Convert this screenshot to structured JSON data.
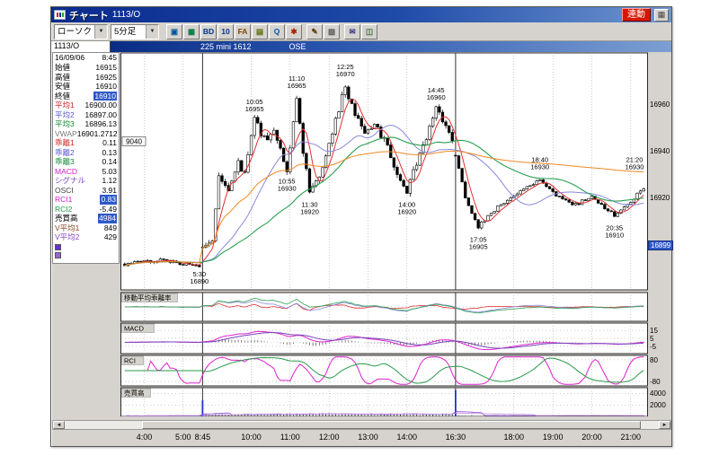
{
  "window": {
    "title": "チャート",
    "title_code": "1113/O",
    "linked_button": "連動",
    "corner_icon_glyph": "▦"
  },
  "toolbar": {
    "chart_type_value": "ローソク",
    "timeframe_value": "5分足",
    "dropdown_arrow": "▼",
    "icon_groups": [
      [
        {
          "name": "frame-icon",
          "glyph": "▣",
          "color": "#005599"
        },
        {
          "name": "multi-chart-icon",
          "glyph": "▦",
          "color": "#007744"
        },
        {
          "name": "board-icon",
          "glyph": "BD",
          "color": "#003399"
        },
        {
          "name": "tick-list-icon",
          "glyph": "10",
          "color": "#003399"
        },
        {
          "name": "news-icon",
          "glyph": "FA",
          "color": "#884400"
        },
        {
          "name": "grid-icon",
          "glyph": "▤",
          "color": "#556600"
        },
        {
          "name": "search-icon",
          "glyph": "Q",
          "color": "#0055aa"
        },
        {
          "name": "indicator-icon",
          "glyph": "✱",
          "color": "#aa2200"
        }
      ],
      [
        {
          "name": "draw-line-icon",
          "glyph": "✎",
          "color": "#553300"
        },
        {
          "name": "erase-icon",
          "glyph": "▨",
          "color": "#555555"
        }
      ],
      [
        {
          "name": "mail-icon",
          "glyph": "✉",
          "color": "#333388"
        },
        {
          "name": "capture-icon",
          "glyph": "◫",
          "color": "#336633"
        }
      ]
    ]
  },
  "infobar": {
    "code": "1113/O",
    "instrument": "225 mini 1612",
    "exchange": "OSE"
  },
  "data_panel": {
    "date": "16/09/06",
    "time": "8:45",
    "rows": [
      {
        "label": "始値",
        "value": "16915",
        "color": "#000000",
        "highlight": false
      },
      {
        "label": "高値",
        "value": "16925",
        "color": "#000000",
        "highlight": false
      },
      {
        "label": "安値",
        "value": "16910",
        "color": "#000000",
        "highlight": false
      },
      {
        "label": "終値",
        "value": "16910",
        "color": "#000000",
        "highlight": true
      },
      {
        "label": "平均1",
        "value": "16900.00",
        "color": "#cc2222",
        "highlight": false
      },
      {
        "label": "平均2",
        "value": "16897.00",
        "color": "#5555cc",
        "highlight": false
      },
      {
        "label": "平均3",
        "value": "16896.13",
        "color": "#118833",
        "highlight": false
      },
      {
        "label": "VWAP",
        "value": "16901.2712",
        "color": "#777777",
        "highlight": false
      },
      {
        "label": "乖離1",
        "value": "0.11",
        "color": "#cc2222",
        "highlight": false
      },
      {
        "label": "乖離2",
        "value": "0.13",
        "color": "#5555cc",
        "highlight": false
      },
      {
        "label": "乖離3",
        "value": "0.14",
        "color": "#118833",
        "highlight": false
      },
      {
        "label": "MACD",
        "value": "5.03",
        "color": "#cc22cc",
        "highlight": false
      },
      {
        "label": "シグナル",
        "value": "1.12",
        "color": "#7744bb",
        "highlight": false
      },
      {
        "label": "OSCI",
        "value": "3.91",
        "color": "#444444",
        "highlight": false
      },
      {
        "label": "RCI1",
        "value": "0.83",
        "color": "#cc22cc",
        "highlight": true
      },
      {
        "label": "RCI2",
        "value": "-5.49",
        "color": "#22984a",
        "highlight": false
      },
      {
        "label": "売買高",
        "value": "4984",
        "color": "#000000",
        "highlight": true
      },
      {
        "label": "V平均1",
        "value": "849",
        "color": "#884422",
        "highlight": false
      },
      {
        "label": "V平均2",
        "value": "429",
        "color": "#8844cc",
        "highlight": false
      }
    ],
    "legend_chips": [
      "#6633cc",
      "#9966cc"
    ]
  },
  "scrollbar": {
    "left_arrow": "◄",
    "right_arrow": "►"
  },
  "chart_data": {
    "type": "candlestick",
    "timeframe": "5分足",
    "instrument": "225 mini 1612",
    "exchange": "OSE",
    "sessions": [
      {
        "start": "3:30",
        "end": "5:25"
      },
      {
        "start": "8:45",
        "end": "15:10"
      },
      {
        "start": "16:30",
        "end": "21:20"
      }
    ],
    "price_anchors": [
      [
        "3:30",
        16891
      ],
      [
        "4:30",
        16893
      ],
      [
        "5:25",
        16890
      ],
      [
        "8:45",
        16898
      ],
      [
        "9:00",
        16902
      ],
      [
        "9:10",
        16928
      ],
      [
        "9:25",
        16922
      ],
      [
        "9:40",
        16935
      ],
      [
        "9:50",
        16930
      ],
      [
        "10:05",
        16953
      ],
      [
        "10:20",
        16945
      ],
      [
        "10:35",
        16948
      ],
      [
        "10:55",
        16932
      ],
      [
        "11:10",
        16963
      ],
      [
        "11:20",
        16940
      ],
      [
        "11:30",
        16922
      ],
      [
        "11:45",
        16930
      ],
      [
        "12:00",
        16942
      ],
      [
        "12:25",
        16968
      ],
      [
        "12:40",
        16955
      ],
      [
        "12:55",
        16948
      ],
      [
        "13:10",
        16952
      ],
      [
        "13:30",
        16942
      ],
      [
        "13:45",
        16930
      ],
      [
        "14:00",
        16922
      ],
      [
        "14:15",
        16935
      ],
      [
        "14:30",
        16945
      ],
      [
        "14:45",
        16958
      ],
      [
        "15:00",
        16950
      ],
      [
        "15:10",
        16945
      ],
      [
        "16:30",
        16938
      ],
      [
        "16:45",
        16920
      ],
      [
        "17:05",
        16907
      ],
      [
        "17:20",
        16912
      ],
      [
        "17:45",
        16918
      ],
      [
        "18:10",
        16922
      ],
      [
        "18:40",
        16928
      ],
      [
        "19:00",
        16922
      ],
      [
        "19:30",
        16916
      ],
      [
        "20:00",
        16920
      ],
      [
        "20:35",
        16912
      ],
      [
        "21:00",
        16918
      ],
      [
        "21:20",
        16924
      ]
    ],
    "y_axis": {
      "min": 16880,
      "max": 16982,
      "ticks": [
        16960,
        16940,
        16920
      ],
      "last_price": 16899
    },
    "x_ticks": [
      "4:00",
      "5:00",
      "8:45",
      "10:00",
      "11:00",
      "12:00",
      "13:00",
      "14:00",
      "16:30",
      "18:00",
      "19:00",
      "20:00",
      "21:00"
    ],
    "session_lines": [
      "8:45",
      "16:30"
    ],
    "annotations": [
      {
        "time": "10:05",
        "price": 16955,
        "pos": "above"
      },
      {
        "time": "11:10",
        "price": 16965,
        "pos": "above"
      },
      {
        "time": "12:25",
        "price": 16970,
        "pos": "above"
      },
      {
        "time": "14:45",
        "price": 16960,
        "pos": "above"
      },
      {
        "time": "18:40",
        "price": 16930,
        "pos": "above"
      },
      {
        "time": "21:20",
        "price": 16930,
        "pos": "above"
      },
      {
        "time": "5:30",
        "price": 16890,
        "pos": "below"
      },
      {
        "time": "10:55",
        "price": 16930,
        "pos": "below"
      },
      {
        "time": "11:30",
        "price": 16920,
        "pos": "below"
      },
      {
        "time": "14:00",
        "price": 16920,
        "pos": "below"
      },
      {
        "time": "17:05",
        "price": 16905,
        "pos": "below"
      },
      {
        "time": "20:35",
        "price": 16910,
        "pos": "below"
      }
    ],
    "marker": {
      "label": "9040",
      "price": 16944
    },
    "overlays": [
      {
        "name": "平均1",
        "color": "#e03030",
        "period": 5
      },
      {
        "name": "平均2",
        "color": "#8888dd",
        "period": 21
      },
      {
        "name": "平均3",
        "color": "#2aa050",
        "period": 45
      },
      {
        "name": "VWAP",
        "color": "#ee8822"
      }
    ],
    "panels": [
      {
        "name": "移動平均乖離率",
        "ticks": []
      },
      {
        "name": "MACD",
        "ticks": [
          15,
          5,
          -5
        ]
      },
      {
        "name": "RCI",
        "ticks": [
          80,
          -80
        ]
      },
      {
        "name": "売買高",
        "ticks": [
          4000,
          2000
        ]
      }
    ],
    "volume_spikes": [
      {
        "time": "8:45",
        "value": 2800
      },
      {
        "time": "16:30",
        "value": 4600
      }
    ]
  }
}
